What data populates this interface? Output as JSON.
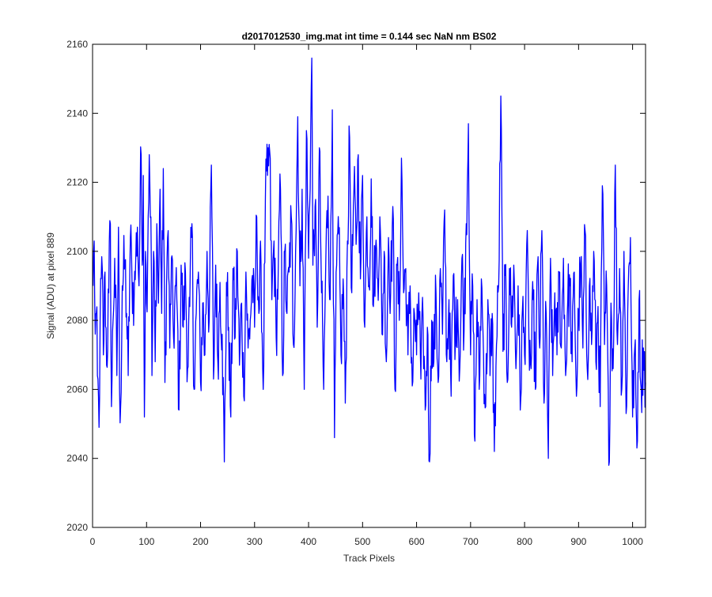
{
  "chart_data": {
    "type": "line",
    "title": "d2017012530_img.mat int time = 0.144 sec  NaN nm BS02",
    "xlabel": "Track Pixels",
    "ylabel": "Signal (ADU) at pixel 889",
    "xlim": [
      0,
      1024
    ],
    "ylim": [
      2020,
      2160
    ],
    "xticks": [
      0,
      100,
      200,
      300,
      400,
      500,
      600,
      700,
      800,
      900,
      1000
    ],
    "yticks": [
      2020,
      2040,
      2060,
      2080,
      2100,
      2120,
      2140,
      2160
    ],
    "grid": false,
    "legend": "none",
    "series": [
      {
        "name": "",
        "color": "#0000ff",
        "x_start": 1,
        "x_step": 1,
        "y_keypoints": [
          [
            1,
            2090
          ],
          [
            3,
            2103
          ],
          [
            5,
            2076
          ],
          [
            7,
            2082
          ],
          [
            9,
            2064
          ],
          [
            12,
            2049
          ],
          [
            14,
            2080
          ],
          [
            18,
            2095
          ],
          [
            20,
            2070
          ],
          [
            23,
            2094
          ],
          [
            26,
            2067
          ],
          [
            30,
            2088
          ],
          [
            33,
            2108
          ],
          [
            35,
            2055
          ],
          [
            38,
            2080
          ],
          [
            41,
            2098
          ],
          [
            45,
            2064
          ],
          [
            48,
            2107
          ],
          [
            50,
            2060
          ],
          [
            52,
            2055
          ],
          [
            55,
            2090
          ],
          [
            60,
            2097
          ],
          [
            63,
            2082
          ],
          [
            66,
            2064
          ],
          [
            70,
            2104
          ],
          [
            73,
            2092
          ],
          [
            77,
            2086
          ],
          [
            80,
            2098
          ],
          [
            83,
            2107
          ],
          [
            86,
            2090
          ],
          [
            88,
            2113
          ],
          [
            90,
            2128
          ],
          [
            92,
            2096
          ],
          [
            94,
            2122
          ],
          [
            96,
            2052
          ],
          [
            98,
            2100
          ],
          [
            100,
            2085
          ],
          [
            103,
            2110
          ],
          [
            105,
            2128
          ],
          [
            108,
            2110
          ],
          [
            110,
            2064
          ],
          [
            113,
            2100
          ],
          [
            116,
            2068
          ],
          [
            119,
            2108
          ],
          [
            122,
            2085
          ],
          [
            125,
            2118
          ],
          [
            128,
            2082
          ],
          [
            131,
            2124
          ],
          [
            134,
            2062
          ],
          [
            137,
            2090
          ],
          [
            140,
            2106
          ],
          [
            143,
            2072
          ],
          [
            146,
            2098
          ],
          [
            150,
            2075
          ],
          [
            154,
            2090
          ],
          [
            157,
            2082
          ],
          [
            160,
            2054
          ],
          [
            164,
            2096
          ],
          [
            168,
            2078
          ],
          [
            172,
            2094
          ],
          [
            176,
            2066
          ],
          [
            180,
            2084
          ],
          [
            184,
            2108
          ],
          [
            188,
            2060
          ],
          [
            192,
            2082
          ],
          [
            196,
            2094
          ],
          [
            200,
            2062
          ],
          [
            204,
            2085
          ],
          [
            208,
            2070
          ],
          [
            212,
            2100
          ],
          [
            216,
            2080
          ],
          [
            220,
            2125
          ],
          [
            224,
            2063
          ],
          [
            228,
            2096
          ],
          [
            232,
            2068
          ],
          [
            236,
            2091
          ],
          [
            240,
            2076
          ],
          [
            244,
            2039
          ],
          [
            248,
            2091
          ],
          [
            252,
            2078
          ],
          [
            256,
            2052
          ],
          [
            260,
            2095
          ],
          [
            264,
            2075
          ],
          [
            268,
            2100
          ],
          [
            272,
            2067
          ],
          [
            276,
            2085
          ],
          [
            280,
            2058
          ],
          [
            284,
            2094
          ],
          [
            288,
            2072
          ],
          [
            292,
            2080
          ],
          [
            296,
            2093
          ],
          [
            300,
            2078
          ],
          [
            304,
            2110
          ],
          [
            308,
            2082
          ],
          [
            312,
            2096
          ],
          [
            316,
            2060
          ],
          [
            320,
            2115
          ],
          [
            324,
            2122
          ],
          [
            328,
            2129
          ],
          [
            332,
            2086
          ],
          [
            336,
            2103
          ],
          [
            340,
            2075
          ],
          [
            344,
            2096
          ],
          [
            348,
            2118
          ],
          [
            352,
            2064
          ],
          [
            356,
            2100
          ],
          [
            360,
            2082
          ],
          [
            364,
            2094
          ],
          [
            368,
            2110
          ],
          [
            372,
            2073
          ],
          [
            376,
            2100
          ],
          [
            380,
            2139
          ],
          [
            384,
            2090
          ],
          [
            388,
            2118
          ],
          [
            392,
            2060
          ],
          [
            396,
            2135
          ],
          [
            400,
            2098
          ],
          [
            404,
            2136
          ],
          [
            406,
            2156
          ],
          [
            408,
            2096
          ],
          [
            412,
            2113
          ],
          [
            416,
            2078
          ],
          [
            420,
            2130
          ],
          [
            424,
            2088
          ],
          [
            428,
            2060
          ],
          [
            432,
            2098
          ],
          [
            436,
            2116
          ],
          [
            440,
            2086
          ],
          [
            444,
            2141
          ],
          [
            448,
            2046
          ],
          [
            452,
            2096
          ],
          [
            456,
            2105
          ],
          [
            460,
            2070
          ],
          [
            464,
            2092
          ],
          [
            468,
            2056
          ],
          [
            472,
            2103
          ],
          [
            476,
            2133
          ],
          [
            480,
            2088
          ],
          [
            484,
            2118
          ],
          [
            488,
            2102
          ],
          [
            492,
            2128
          ],
          [
            496,
            2092
          ],
          [
            500,
            2122
          ],
          [
            504,
            2078
          ],
          [
            508,
            2110
          ],
          [
            512,
            2090
          ],
          [
            516,
            2121
          ],
          [
            520,
            2084
          ],
          [
            524,
            2101
          ],
          [
            528,
            2092
          ],
          [
            532,
            2110
          ],
          [
            536,
            2076
          ],
          [
            540,
            2100
          ],
          [
            544,
            2068
          ],
          [
            548,
            2104
          ],
          [
            552,
            2088
          ],
          [
            556,
            2113
          ],
          [
            560,
            2060
          ],
          [
            564,
            2096
          ],
          [
            568,
            2080
          ],
          [
            572,
            2127
          ],
          [
            576,
            2088
          ],
          [
            580,
            2095
          ],
          [
            584,
            2070
          ],
          [
            588,
            2090
          ],
          [
            592,
            2061
          ],
          [
            596,
            2082
          ],
          [
            600,
            2070
          ],
          [
            604,
            2088
          ],
          [
            608,
            2063
          ],
          [
            612,
            2081
          ],
          [
            616,
            2054
          ],
          [
            620,
            2078
          ],
          [
            624,
            2039
          ],
          [
            628,
            2080
          ],
          [
            632,
            2068
          ],
          [
            636,
            2088
          ],
          [
            640,
            2062
          ],
          [
            644,
            2095
          ],
          [
            648,
            2076
          ],
          [
            652,
            2112
          ],
          [
            656,
            2068
          ],
          [
            660,
            2086
          ],
          [
            664,
            2058
          ],
          [
            668,
            2093
          ],
          [
            672,
            2074
          ],
          [
            676,
            2086
          ],
          [
            680,
            2066
          ],
          [
            684,
            2098
          ],
          [
            688,
            2077
          ],
          [
            692,
            2108
          ],
          [
            696,
            2137
          ],
          [
            700,
            2070
          ],
          [
            704,
            2090
          ],
          [
            708,
            2045
          ],
          [
            712,
            2086
          ],
          [
            716,
            2060
          ],
          [
            720,
            2092
          ],
          [
            724,
            2070
          ],
          [
            728,
            2055
          ],
          [
            732,
            2086
          ],
          [
            736,
            2064
          ],
          [
            740,
            2082
          ],
          [
            744,
            2042
          ],
          [
            748,
            2073
          ],
          [
            752,
            2090
          ],
          [
            756,
            2145
          ],
          [
            760,
            2071
          ],
          [
            764,
            2093
          ],
          [
            768,
            2062
          ],
          [
            772,
            2095
          ],
          [
            776,
            2078
          ],
          [
            780,
            2096
          ],
          [
            784,
            2066
          ],
          [
            788,
            2090
          ],
          [
            792,
            2054
          ],
          [
            796,
            2083
          ],
          [
            800,
            2070
          ],
          [
            804,
            2102
          ],
          [
            808,
            2075
          ],
          [
            812,
            2066
          ],
          [
            816,
            2086
          ],
          [
            820,
            2060
          ],
          [
            824,
            2096
          ],
          [
            828,
            2072
          ],
          [
            832,
            2106
          ],
          [
            836,
            2056
          ],
          [
            840,
            2082
          ],
          [
            844,
            2040
          ],
          [
            848,
            2098
          ],
          [
            852,
            2064
          ],
          [
            856,
            2088
          ],
          [
            860,
            2070
          ],
          [
            864,
            2094
          ],
          [
            868,
            2072
          ],
          [
            872,
            2098
          ],
          [
            876,
            2064
          ],
          [
            880,
            2086
          ],
          [
            884,
            2090
          ],
          [
            888,
            2068
          ],
          [
            892,
            2094
          ],
          [
            896,
            2058
          ],
          [
            900,
            2082
          ],
          [
            904,
            2096
          ],
          [
            908,
            2072
          ],
          [
            912,
            2106
          ],
          [
            916,
            2066
          ],
          [
            920,
            2090
          ],
          [
            924,
            2073
          ],
          [
            928,
            2100
          ],
          [
            932,
            2068
          ],
          [
            936,
            2084
          ],
          [
            940,
            2055
          ],
          [
            944,
            2119
          ],
          [
            948,
            2073
          ],
          [
            952,
            2090
          ],
          [
            956,
            2038
          ],
          [
            960,
            2085
          ],
          [
            964,
            2066
          ],
          [
            968,
            2125
          ],
          [
            972,
            2073
          ],
          [
            976,
            2095
          ],
          [
            980,
            2060
          ],
          [
            984,
            2100
          ],
          [
            988,
            2053
          ],
          [
            992,
            2090
          ],
          [
            996,
            2104
          ],
          [
            1000,
            2052
          ],
          [
            1004,
            2072
          ],
          [
            1008,
            2043
          ],
          [
            1012,
            2086
          ],
          [
            1016,
            2060
          ],
          [
            1020,
            2072
          ],
          [
            1024,
            2062
          ]
        ]
      }
    ]
  }
}
